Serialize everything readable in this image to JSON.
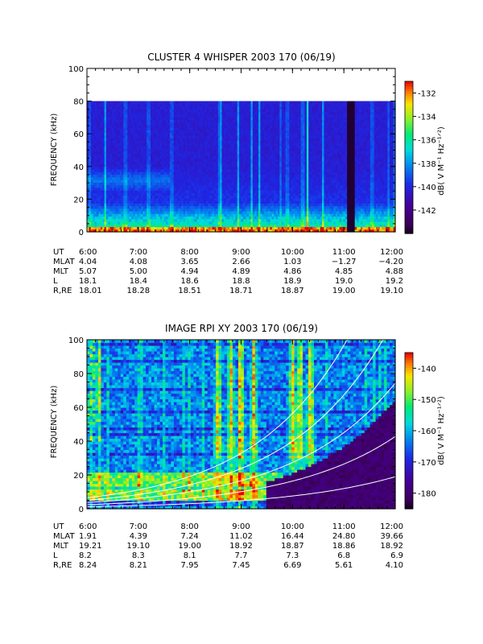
{
  "figure": {
    "background": "#ffffff"
  },
  "chart_data": [
    {
      "type": "heatmap",
      "title": "CLUSTER 4 WHISPER 2003 170 (06/19)",
      "ylabel": "FREQUENCY (kHz)",
      "ylim": [
        0,
        100
      ],
      "yticks": [
        "0",
        "20",
        "40",
        "60",
        "80",
        "100"
      ],
      "xlim": [
        "6:00",
        "12:00"
      ],
      "data_fmax_khz": 80,
      "colorbar": {
        "label": "dB( V M⁻¹ Hz⁻¹ᐟ²)",
        "range": [
          -144,
          -131
        ],
        "ticks": [
          "-132",
          "-134",
          "-136",
          "-138",
          "-140",
          "-142"
        ]
      },
      "orbit_table": {
        "rows": [
          {
            "label": "UT",
            "values": [
              "6:00",
              "7:00",
              "8:00",
              "9:00",
              "10:00",
              "11:00",
              "12:00"
            ]
          },
          {
            "label": "MLAT",
            "values": [
              "4.04",
              "4.08",
              "3.65",
              "2.66",
              "1.03",
              "−1.27",
              "−4.20"
            ]
          },
          {
            "label": "MLT",
            "values": [
              "5.07",
              "5.00",
              "4.94",
              "4.89",
              "4.86",
              "4.85",
              "4.88"
            ]
          },
          {
            "label": "L",
            "values": [
              "18.1",
              "18.4",
              "18.6",
              "18.8",
              "18.9",
              "19.0",
              "19.2"
            ]
          },
          {
            "label": "R,RE",
            "values": [
              "18.01",
              "18.28",
              "18.51",
              "18.71",
              "18.87",
              "19.00",
              "19.10"
            ]
          }
        ]
      },
      "features": {
        "data_gap_ut_hours": [
          11.05,
          11.2
        ],
        "low_frequency_band_khz": [
          0,
          18
        ],
        "vertical_bursts_ut_hours": [
          6.35,
          6.75,
          7.2,
          7.65,
          8.6,
          8.95,
          9.2,
          9.35,
          9.9,
          10.3,
          10.6,
          11.55
        ]
      }
    },
    {
      "type": "heatmap",
      "title": "IMAGE RPI XY 2003 170 (06/19)",
      "ylabel": "FREQUENCY (kHz)",
      "ylim": [
        0,
        100
      ],
      "yticks": [
        "0",
        "20",
        "40",
        "60",
        "80",
        "100"
      ],
      "xlim": [
        "6:00",
        "12:00"
      ],
      "colorbar": {
        "label": "dB( V M⁻¹ Hz⁻¹ᐟ²)",
        "range": [
          -185,
          -135
        ],
        "ticks": [
          "-140",
          "-150",
          "-160",
          "-170",
          "-180"
        ]
      },
      "orbit_table": {
        "rows": [
          {
            "label": "UT",
            "values": [
              "6:00",
              "7:00",
              "8:00",
              "9:00",
              "10:00",
              "11:00",
              "12:00"
            ]
          },
          {
            "label": "MLAT",
            "values": [
              "1.91",
              "4.39",
              "7.24",
              "11.02",
              "16.44",
              "24.80",
              "39.66"
            ]
          },
          {
            "label": "MLT",
            "values": [
              "19.21",
              "19.10",
              "19.00",
              "18.92",
              "18.87",
              "18.86",
              "18.92"
            ]
          },
          {
            "label": "L",
            "values": [
              "8.2",
              "8.3",
              "8.1",
              "7.7",
              "7.3",
              "6.8",
              "6.9"
            ]
          },
          {
            "label": "R,RE",
            "values": [
              "8.24",
              "8.21",
              "7.95",
              "7.45",
              "6.69",
              "5.61",
              "4.10"
            ]
          }
        ]
      },
      "features": {
        "overlay_curve_count": 5,
        "intense_bursts_ut_hours": [
          8.55,
          8.8,
          9.0,
          9.25,
          10.0,
          10.15,
          10.35
        ],
        "low_frequency_band_khz": [
          5,
          22
        ]
      }
    }
  ]
}
